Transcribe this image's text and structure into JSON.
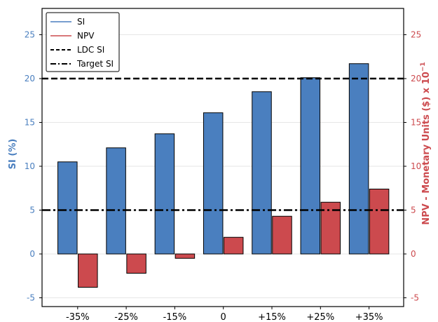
{
  "chart_data": {
    "type": "bar",
    "categories": [
      "-35%",
      "-25%",
      "-15%",
      "0",
      "+15%",
      "+25%",
      "+35%"
    ],
    "series": [
      {
        "name": "SI",
        "axis": "left",
        "color": "#4a7fbf",
        "values": [
          10.5,
          12.1,
          13.7,
          16.1,
          18.5,
          20.1,
          21.7
        ]
      },
      {
        "name": "NPV",
        "axis": "right",
        "color": "#cc4a4e",
        "values": [
          -3.8,
          -2.2,
          -0.5,
          1.9,
          4.3,
          5.9,
          7.4
        ]
      }
    ],
    "reference_lines": [
      {
        "name": "LDC SI",
        "value": 20,
        "style": "dashed"
      },
      {
        "name": "Target SI",
        "value": 5,
        "style": "dashdot"
      }
    ],
    "ylabel": "SI (%)",
    "ylabel_right": "NPV - Monetary Units ($) x 10",
    "ylabel_right_exponent": "−1",
    "ylim": [
      -6,
      28
    ],
    "ylim_right": [
      -6,
      28
    ],
    "yticks": [
      -5,
      0,
      5,
      10,
      15,
      20,
      25
    ],
    "grid": "horizontal",
    "legend_position": "top-left",
    "left_axis_color": "#4a7fbf",
    "right_axis_color": "#cc4a4e"
  }
}
